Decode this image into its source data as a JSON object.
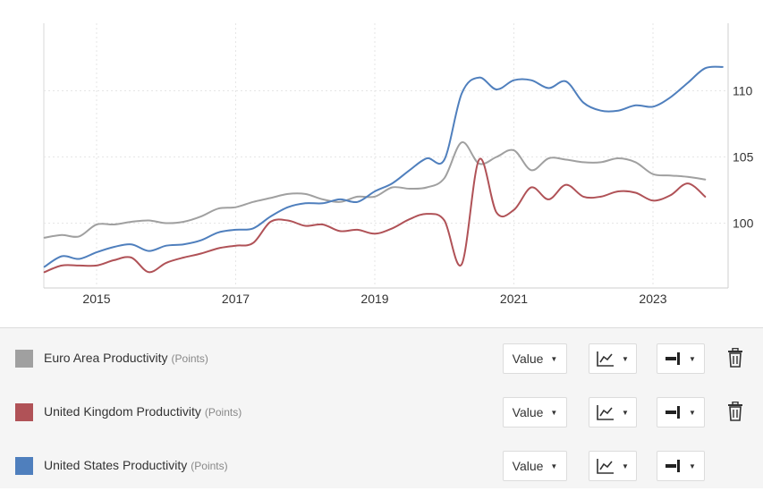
{
  "chart_data": {
    "type": "line",
    "x_ticks": [
      "2015",
      "2017",
      "2019",
      "2021",
      "2023"
    ],
    "xlim": [
      2014.25,
      2024.0
    ],
    "y_ticks": [
      "100",
      "105",
      "110"
    ],
    "ylim": [
      95.0,
      115.0
    ],
    "y_axis_side": "right",
    "grid": true,
    "legend_placement": "below",
    "series": [
      {
        "name": "Euro Area Productivity",
        "color": "#a0a0a0",
        "x": [
          2014.25,
          2014.5,
          2014.75,
          2015.0,
          2015.25,
          2015.5,
          2015.75,
          2016.0,
          2016.25,
          2016.5,
          2016.75,
          2017.0,
          2017.25,
          2017.5,
          2017.75,
          2018.0,
          2018.25,
          2018.5,
          2018.75,
          2019.0,
          2019.25,
          2019.5,
          2019.75,
          2020.0,
          2020.25,
          2020.5,
          2020.75,
          2021.0,
          2021.25,
          2021.5,
          2021.75,
          2022.0,
          2022.25,
          2022.5,
          2022.75,
          2023.0,
          2023.25,
          2023.5,
          2023.75
        ],
        "y": [
          98.9,
          99.1,
          99.0,
          99.9,
          99.9,
          100.1,
          100.2,
          100.0,
          100.1,
          100.5,
          101.1,
          101.2,
          101.6,
          101.9,
          102.2,
          102.2,
          101.8,
          101.6,
          102.0,
          102.0,
          102.7,
          102.6,
          102.7,
          103.4,
          106.1,
          104.5,
          105.0,
          105.5,
          104.0,
          104.9,
          104.8,
          104.6,
          104.6,
          104.9,
          104.6,
          103.7,
          103.6,
          103.5,
          103.3
        ]
      },
      {
        "name": "United Kingdom Productivity",
        "color": "#b05257",
        "x": [
          2014.25,
          2014.5,
          2014.75,
          2015.0,
          2015.25,
          2015.5,
          2015.75,
          2016.0,
          2016.25,
          2016.5,
          2016.75,
          2017.0,
          2017.25,
          2017.5,
          2017.75,
          2018.0,
          2018.25,
          2018.5,
          2018.75,
          2019.0,
          2019.25,
          2019.5,
          2019.75,
          2020.0,
          2020.25,
          2020.5,
          2020.75,
          2021.0,
          2021.25,
          2021.5,
          2021.75,
          2022.0,
          2022.25,
          2022.5,
          2022.75,
          2023.0,
          2023.25,
          2023.5,
          2023.75
        ],
        "y": [
          96.3,
          96.8,
          96.8,
          96.8,
          97.2,
          97.4,
          96.3,
          97.0,
          97.4,
          97.7,
          98.1,
          98.3,
          98.5,
          100.1,
          100.2,
          99.8,
          99.9,
          99.4,
          99.5,
          99.2,
          99.6,
          100.3,
          100.7,
          100.2,
          96.9,
          104.8,
          100.8,
          101.0,
          102.7,
          101.8,
          102.9,
          102.0,
          102.0,
          102.4,
          102.3,
          101.7,
          102.1,
          103.0,
          102.0
        ]
      },
      {
        "name": "United States Productivity",
        "color": "#4f7fbd",
        "x": [
          2014.25,
          2014.5,
          2014.75,
          2015.0,
          2015.25,
          2015.5,
          2015.75,
          2016.0,
          2016.25,
          2016.5,
          2016.75,
          2017.0,
          2017.25,
          2017.5,
          2017.75,
          2018.0,
          2018.25,
          2018.5,
          2018.75,
          2019.0,
          2019.25,
          2019.5,
          2019.75,
          2020.0,
          2020.25,
          2020.5,
          2020.75,
          2021.0,
          2021.25,
          2021.5,
          2021.75,
          2022.0,
          2022.25,
          2022.5,
          2022.75,
          2023.0,
          2023.25,
          2023.5,
          2023.75,
          2024.0
        ],
        "y": [
          96.7,
          97.5,
          97.3,
          97.8,
          98.2,
          98.4,
          97.9,
          98.3,
          98.4,
          98.7,
          99.3,
          99.5,
          99.6,
          100.5,
          101.2,
          101.5,
          101.5,
          101.8,
          101.6,
          102.4,
          103.0,
          104.0,
          104.9,
          104.8,
          109.8,
          111.0,
          110.1,
          110.8,
          110.8,
          110.2,
          110.7,
          109.1,
          108.5,
          108.5,
          108.9,
          108.8,
          109.5,
          110.6,
          111.7,
          111.8
        ]
      }
    ]
  },
  "legend_rows": [
    {
      "name": "Euro Area Productivity",
      "unit": "(Points)",
      "color": "#a0a0a0",
      "value_label": "Value",
      "type_icon": "line-chart-icon",
      "axis_icon": "right-axis-icon",
      "has_delete": true
    },
    {
      "name": "United Kingdom Productivity",
      "unit": "(Points)",
      "color": "#b05257",
      "value_label": "Value",
      "type_icon": "line-chart-icon",
      "axis_icon": "right-axis-icon",
      "has_delete": true
    },
    {
      "name": "United States Productivity",
      "unit": "(Points)",
      "color": "#4f7fbd",
      "value_label": "Value",
      "type_icon": "line-chart-icon",
      "axis_icon": "right-axis-icon",
      "has_delete": false
    }
  ],
  "caret_glyph": "▼"
}
